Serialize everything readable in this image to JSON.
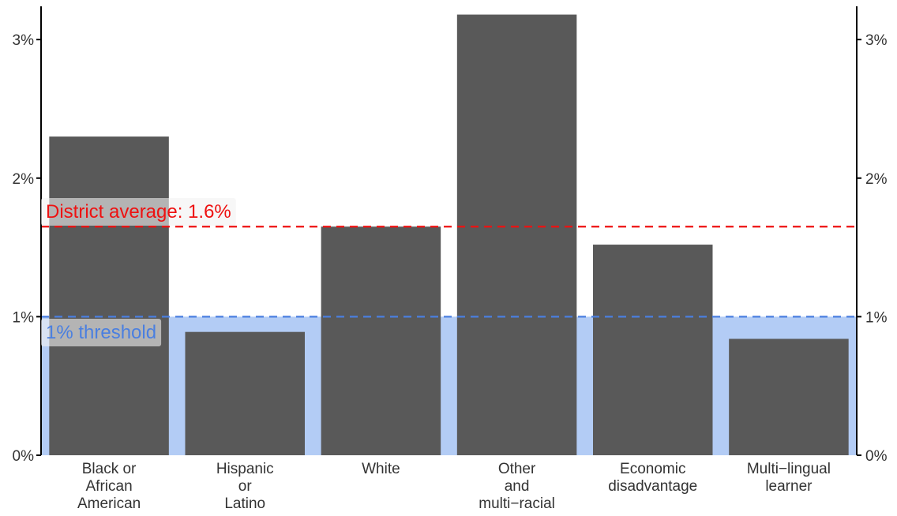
{
  "chart_data": {
    "type": "bar",
    "categories": [
      [
        "Black or",
        "African",
        "American"
      ],
      [
        "Hispanic",
        "or",
        "Latino"
      ],
      [
        "White"
      ],
      [
        "Other",
        "and",
        "multi−racial"
      ],
      [
        "Economic",
        "disadvantage"
      ],
      [
        "Multi−lingual",
        "learner"
      ]
    ],
    "values": [
      2.3,
      0.89,
      1.65,
      3.18,
      1.52,
      0.84
    ],
    "ylim": [
      0,
      3.2
    ],
    "y_ticks": [
      0,
      1,
      2,
      3
    ],
    "y_tick_labels": [
      "0%",
      "1%",
      "2%",
      "3%"
    ],
    "y_axis_both_sides": true,
    "title": "",
    "xlabel": "",
    "ylabel": "",
    "reference_lines": [
      {
        "value": 1.65,
        "label": "District average: 1.6%",
        "color": "#ee1111",
        "style": "dashed"
      },
      {
        "value": 1.0,
        "label": "1% threshold",
        "color": "#4a7fe0",
        "style": "dashed",
        "shaded_below": true,
        "shade_color": "#b3ccf5"
      }
    ],
    "bar_color": "#595959"
  }
}
